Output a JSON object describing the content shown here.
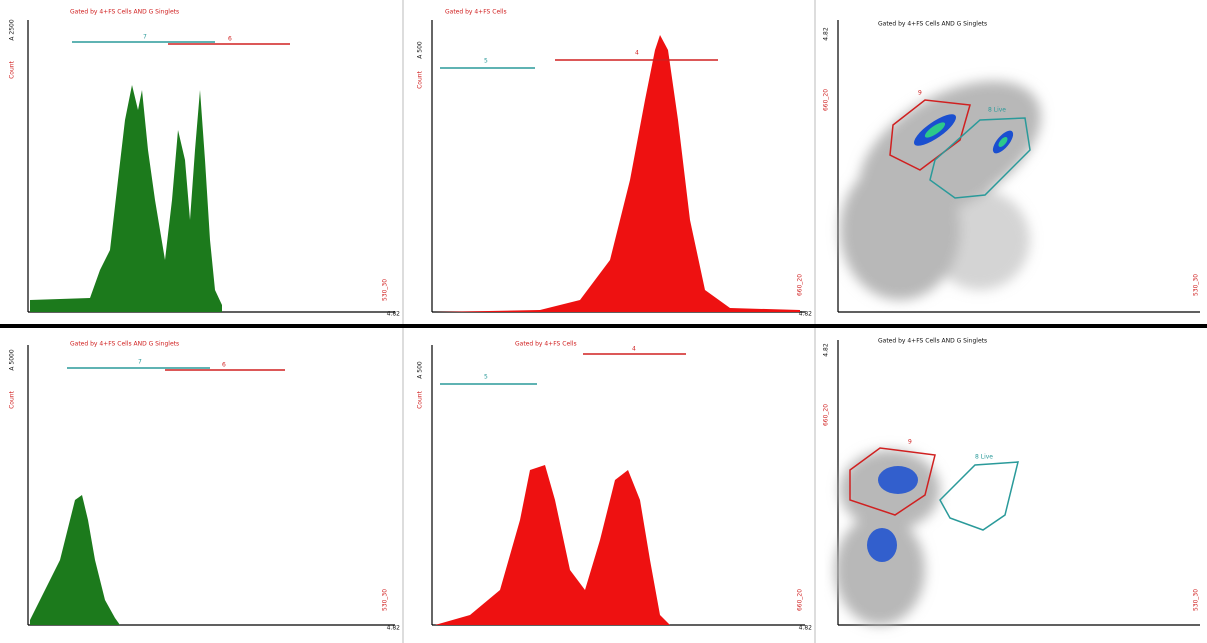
{
  "panels": [
    {
      "title": "Gated by 4+FS Cells AND G Singlets",
      "y_label": "Count",
      "y_max": "A 2500",
      "x_label": "530_30",
      "x_max": "4.82",
      "gates": [
        "7",
        "6"
      ]
    },
    {
      "title": "Gated by 4+FS Cells",
      "y_label": "Count",
      "y_max": "A 500",
      "x_label": "660_20",
      "x_max": "4.82",
      "gates": [
        "5",
        "4"
      ]
    },
    {
      "title": "Gated by 4+FS Cells AND G Singlets",
      "y_label": "660_20",
      "y_max": "4.82",
      "x_label": "530_30",
      "gates": [
        "9",
        "8 Live"
      ]
    },
    {
      "title": "Gated by 4+FS Cells AND G Singlets",
      "y_label": "Count",
      "y_max": "A 5000",
      "x_label": "530_30",
      "x_max": "4.82",
      "gates": [
        "7",
        "6"
      ]
    },
    {
      "title": "Gated by 4+FS Cells",
      "y_label": "Count",
      "y_max": "A 500",
      "x_label": "660_20",
      "x_max": "4.82",
      "gates": [
        "5",
        "4"
      ]
    },
    {
      "title": "Gated by 4+FS Cells AND G Singlets",
      "y_label": "660_20",
      "y_max": "4.82",
      "x_label": "530_30",
      "gates": [
        "9",
        "8 Live"
      ]
    }
  ]
}
